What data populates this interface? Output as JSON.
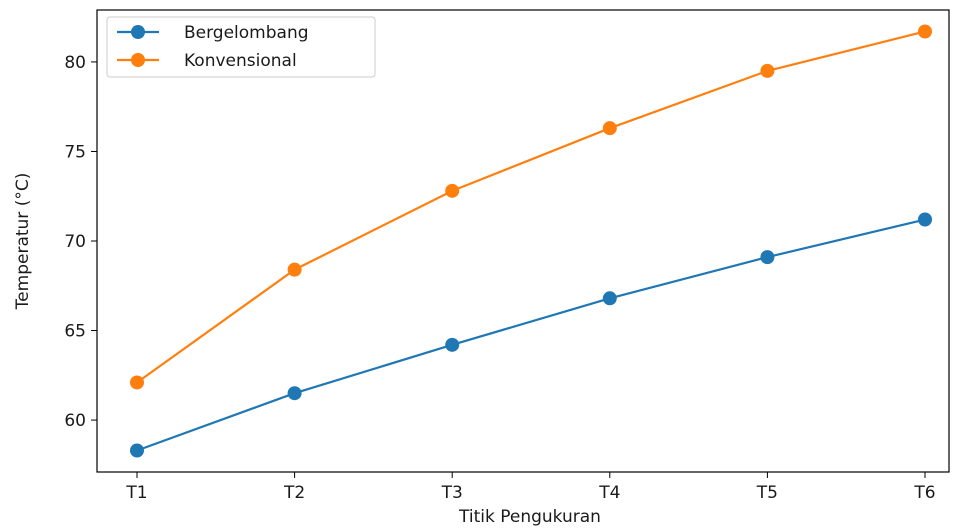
{
  "chart_data": {
    "type": "line",
    "categories": [
      "T1",
      "T2",
      "T3",
      "T4",
      "T5",
      "T6"
    ],
    "series": [
      {
        "name": "Bergelombang",
        "color": "#1f77b4",
        "marker": "circle",
        "values": [
          58.3,
          61.5,
          64.2,
          66.8,
          69.1,
          71.2
        ]
      },
      {
        "name": "Konvensional",
        "color": "#ff7f0e",
        "marker": "circle",
        "values": [
          62.1,
          68.4,
          72.8,
          76.3,
          79.5,
          81.7
        ]
      }
    ],
    "xlabel": "Titik Pengukuran",
    "ylabel": "Temperatur (°C)",
    "ylim": [
      57.1,
      82.9
    ],
    "yticks": [
      60,
      65,
      70,
      75,
      80
    ],
    "grid": false,
    "legend_position": "top-left"
  }
}
